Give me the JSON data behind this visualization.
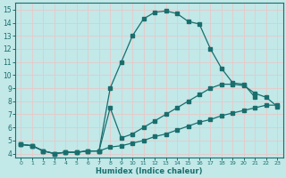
{
  "xlabel": "Humidex (Indice chaleur)",
  "bg_color": "#c2e8e8",
  "grid_color": "#e8c8c8",
  "line_color": "#1a6e6e",
  "xlim": [
    -0.5,
    23.5
  ],
  "ylim": [
    3.7,
    15.5
  ],
  "xticks": [
    0,
    1,
    2,
    3,
    4,
    5,
    6,
    7,
    8,
    9,
    10,
    11,
    12,
    13,
    14,
    15,
    16,
    17,
    18,
    19,
    20,
    21,
    22,
    23
  ],
  "yticks": [
    4,
    5,
    6,
    7,
    8,
    9,
    10,
    11,
    12,
    13,
    14,
    15
  ],
  "line1_x": [
    0,
    1,
    2,
    3,
    4,
    5,
    6,
    7,
    8,
    9,
    10,
    11,
    12,
    13,
    14,
    15,
    16,
    17,
    18,
    19,
    20,
    21
  ],
  "line1_y": [
    4.7,
    4.6,
    4.2,
    4.0,
    4.1,
    4.1,
    4.2,
    4.2,
    9.0,
    11.0,
    13.0,
    14.3,
    14.8,
    14.9,
    14.7,
    14.1,
    13.9,
    12.0,
    10.5,
    9.4,
    9.3,
    8.3
  ],
  "line2_x": [
    0,
    1,
    2,
    3,
    4,
    5,
    6,
    7,
    8,
    9,
    10,
    11,
    12,
    13,
    14,
    15,
    16,
    17,
    18,
    19,
    20,
    21,
    22,
    23
  ],
  "line2_y": [
    4.7,
    4.6,
    4.2,
    4.0,
    4.1,
    4.1,
    4.2,
    4.2,
    7.5,
    5.2,
    5.5,
    6.0,
    6.5,
    7.0,
    7.5,
    8.0,
    8.5,
    9.0,
    9.3,
    9.3,
    9.2,
    8.6,
    8.3,
    7.6
  ],
  "line3_x": [
    0,
    1,
    2,
    3,
    4,
    5,
    6,
    7,
    8,
    9,
    10,
    11,
    12,
    13,
    14,
    15,
    16,
    17,
    18,
    19,
    20,
    21,
    22,
    23
  ],
  "line3_y": [
    4.7,
    4.6,
    4.2,
    4.0,
    4.1,
    4.1,
    4.2,
    4.2,
    4.5,
    4.6,
    4.8,
    5.0,
    5.3,
    5.5,
    5.8,
    6.1,
    6.4,
    6.6,
    6.9,
    7.1,
    7.3,
    7.5,
    7.7,
    7.7
  ]
}
